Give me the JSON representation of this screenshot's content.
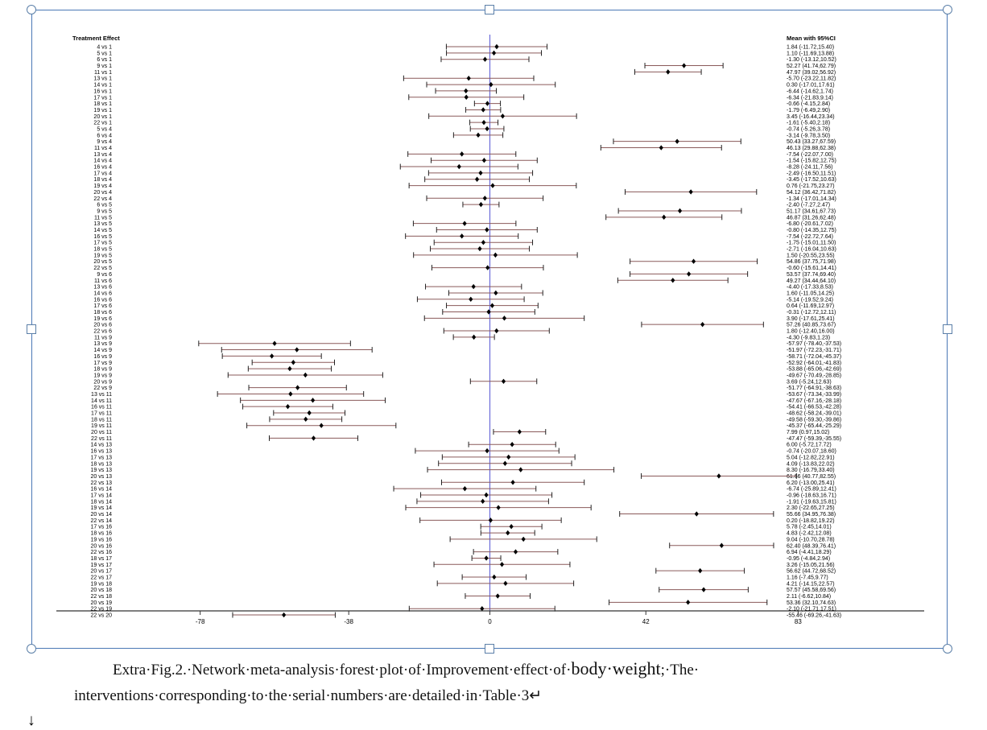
{
  "caption": {
    "line1_a": "Extra·Fig.2.·Network·meta-analysis·forest·plot·of·Improvement·effect·of·",
    "line1_b": "body·weight",
    "line1_c": ";·The·",
    "line2": "interventions·corresponding·to·the·serial·numbers·are·detailed·in·Table·3↵",
    "mark": "↓"
  },
  "colors": {
    "ci_line": "#8a5a5a",
    "zero_line": "#6b6bd9",
    "frame": "#4a78b5",
    "axis": "#333333"
  },
  "chart_data": {
    "type": "forest",
    "left_header": "Treatment Effect",
    "right_header": "Mean with 95%CI",
    "xticks": [
      -78,
      -38,
      0,
      42,
      83
    ],
    "xlim": [
      -97,
      115
    ],
    "reference_line": 0,
    "rows": [
      {
        "label": "4 vs 1",
        "mean": 1.84,
        "lo": -11.72,
        "hi": 15.4,
        "text": "1.84 (-11.72,15.40)"
      },
      {
        "label": "5 vs 1",
        "mean": 1.1,
        "lo": -11.69,
        "hi": 13.88,
        "text": "1.10 (-11.69,13.88)"
      },
      {
        "label": "6 vs 1",
        "mean": -1.3,
        "lo": -13.12,
        "hi": 10.52,
        "text": "-1.30 (-13.12,10.52)"
      },
      {
        "label": "9 vs 1",
        "mean": 52.27,
        "lo": 41.74,
        "hi": 62.79,
        "text": "52.27 (41.74,62.79)"
      },
      {
        "label": "11 vs 1",
        "mean": 47.97,
        "lo": 39.02,
        "hi": 56.92,
        "text": "47.97 (39.02,56.92)"
      },
      {
        "label": "13 vs 1",
        "mean": -5.7,
        "lo": -23.22,
        "hi": 11.82,
        "text": "-5.70 (-23.22,11.82)"
      },
      {
        "label": "14 vs 1",
        "mean": 0.3,
        "lo": -17.01,
        "hi": 17.61,
        "text": "0.30 (-17.01,17.61)"
      },
      {
        "label": "16 vs 1",
        "mean": -6.44,
        "lo": -14.62,
        "hi": 1.74,
        "text": "-6.44 (-14.62,1.74)"
      },
      {
        "label": "17 vs 1",
        "mean": -6.34,
        "lo": -21.83,
        "hi": 9.14,
        "text": "-6.34 (-21.83,9.14)"
      },
      {
        "label": "18 vs 1",
        "mean": -0.66,
        "lo": -4.15,
        "hi": 2.84,
        "text": "-0.66 (-4.15,2.84)"
      },
      {
        "label": "19 vs 1",
        "mean": -1.79,
        "lo": -6.49,
        "hi": 2.9,
        "text": "-1.79 (-6.49,2.90)"
      },
      {
        "label": "20 vs 1",
        "mean": 3.45,
        "lo": -16.44,
        "hi": 23.34,
        "text": "3.45 (-16.44,23.34)"
      },
      {
        "label": "22 vs 1",
        "mean": -1.61,
        "lo": -5.4,
        "hi": 2.18,
        "text": "-1.61 (-5.40,2.18)"
      },
      {
        "label": "5 vs 4",
        "mean": -0.74,
        "lo": -5.26,
        "hi": 3.78,
        "text": "-0.74 (-5.26,3.78)"
      },
      {
        "label": "6 vs 4",
        "mean": -3.14,
        "lo": -9.78,
        "hi": 3.5,
        "text": "-3.14 (-9.78,3.50)"
      },
      {
        "label": "9 vs 4",
        "mean": 50.43,
        "lo": 33.27,
        "hi": 67.59,
        "text": "50.43 (33.27,67.59)"
      },
      {
        "label": "11 vs 4",
        "mean": 46.13,
        "lo": 29.88,
        "hi": 62.38,
        "text": "46.13 (29.88,62.38)"
      },
      {
        "label": "13 vs 4",
        "mean": -7.54,
        "lo": -22.07,
        "hi": 7.0,
        "text": "-7.54 (-22.07,7.00)"
      },
      {
        "label": "14 vs 4",
        "mean": -1.54,
        "lo": -15.82,
        "hi": 12.75,
        "text": "-1.54 (-15.82,12.75)"
      },
      {
        "label": "16 vs 4",
        "mean": -8.28,
        "lo": -24.11,
        "hi": 7.56,
        "text": "-8.28 (-24.11,7.56)"
      },
      {
        "label": "17 vs 4",
        "mean": -2.49,
        "lo": -16.5,
        "hi": 11.51,
        "text": "-2.49 (-16.50,11.51)"
      },
      {
        "label": "18 vs 4",
        "mean": -3.45,
        "lo": -17.52,
        "hi": 10.63,
        "text": "-3.45 (-17.52,10.63)"
      },
      {
        "label": "19 vs 4",
        "mean": 0.76,
        "lo": -21.75,
        "hi": 23.27,
        "text": "0.76 (-21.75,23.27)"
      },
      {
        "label": "20 vs 4",
        "mean": 54.12,
        "lo": 36.42,
        "hi": 71.82,
        "text": "54.12 (36.42,71.82)"
      },
      {
        "label": "22 vs 4",
        "mean": -1.34,
        "lo": -17.01,
        "hi": 14.34,
        "text": "-1.34 (-17.01,14.34)"
      },
      {
        "label": "6 vs 5",
        "mean": -2.4,
        "lo": -7.27,
        "hi": 2.47,
        "text": "-2.40 (-7.27,2.47)"
      },
      {
        "label": "9 vs 5",
        "mean": 51.17,
        "lo": 34.61,
        "hi": 67.73,
        "text": "51.17 (34.61,67.73)"
      },
      {
        "label": "11 vs 5",
        "mean": 46.87,
        "lo": 31.26,
        "hi": 62.48,
        "text": "46.87 (31.26,62.48)"
      },
      {
        "label": "13 vs 5",
        "mean": -6.8,
        "lo": -20.61,
        "hi": 7.02,
        "text": "-6.80 (-20.61,7.02)"
      },
      {
        "label": "14 vs 5",
        "mean": -0.8,
        "lo": -14.35,
        "hi": 12.75,
        "text": "-0.80 (-14.35,12.75)"
      },
      {
        "label": "16 vs 5",
        "mean": -7.54,
        "lo": -22.72,
        "hi": 7.64,
        "text": "-7.54 (-22.72,7.64)"
      },
      {
        "label": "17 vs 5",
        "mean": -1.75,
        "lo": -15.01,
        "hi": 11.5,
        "text": "-1.75 (-15.01,11.50)"
      },
      {
        "label": "18 vs 5",
        "mean": -2.71,
        "lo": -16.04,
        "hi": 10.63,
        "text": "-2.71 (-16.04,10.63)"
      },
      {
        "label": "19 vs 5",
        "mean": 1.5,
        "lo": -20.55,
        "hi": 23.55,
        "text": "1.50 (-20.55,23.55)"
      },
      {
        "label": "20 vs 5",
        "mean": 54.86,
        "lo": 37.75,
        "hi": 71.98,
        "text": "54.86 (37.75,71.98)"
      },
      {
        "label": "22 vs 5",
        "mean": -0.6,
        "lo": -15.61,
        "hi": 14.41,
        "text": "-0.60 (-15.61,14.41)"
      },
      {
        "label": "9 vs 6",
        "mean": 53.57,
        "lo": 37.74,
        "hi": 69.4,
        "text": "53.57 (37.74,69.40)"
      },
      {
        "label": "11 vs 6",
        "mean": 49.27,
        "lo": 34.44,
        "hi": 64.1,
        "text": "49.27 (34.44,64.10)"
      },
      {
        "label": "13 vs 6",
        "mean": -4.4,
        "lo": -17.33,
        "hi": 8.53,
        "text": "-4.40 (-17.33,8.53)"
      },
      {
        "label": "14 vs 6",
        "mean": 1.6,
        "lo": -11.05,
        "hi": 14.25,
        "text": "1.60 (-11.05,14.25)"
      },
      {
        "label": "16 vs 6",
        "mean": -5.14,
        "lo": -19.52,
        "hi": 9.24,
        "text": "-5.14 (-19.52,9.24)"
      },
      {
        "label": "17 vs 6",
        "mean": 0.64,
        "lo": -11.69,
        "hi": 12.97,
        "text": "0.64 (-11.69,12.97)"
      },
      {
        "label": "18 vs 6",
        "mean": -0.31,
        "lo": -12.72,
        "hi": 12.11,
        "text": "-0.31 (-12.72,12.11)"
      },
      {
        "label": "19 vs 6",
        "mean": 3.9,
        "lo": -17.61,
        "hi": 25.41,
        "text": "3.90 (-17.61,25.41)"
      },
      {
        "label": "20 vs 6",
        "mean": 57.26,
        "lo": 40.85,
        "hi": 73.67,
        "text": "57.26 (40.85,73.67)"
      },
      {
        "label": "22 vs 6",
        "mean": 1.8,
        "lo": -12.4,
        "hi": 16.0,
        "text": "1.80 (-12.40,16.00)"
      },
      {
        "label": "11 vs 9",
        "mean": -4.3,
        "lo": -9.83,
        "hi": 1.23,
        "text": "-4.30 (-9.83,1.23)"
      },
      {
        "label": "13 vs 9",
        "mean": -57.97,
        "lo": -78.4,
        "hi": -37.53,
        "text": "-57.97 (-78.40,-37.53)"
      },
      {
        "label": "14 vs 9",
        "mean": -51.97,
        "lo": -72.23,
        "hi": -31.71,
        "text": "-51.97 (-72.23,-31.71)"
      },
      {
        "label": "16 vs 9",
        "mean": -58.71,
        "lo": -72.04,
        "hi": -45.37,
        "text": "-58.71 (-72.04,-45.37)"
      },
      {
        "label": "17 vs 9",
        "mean": -52.92,
        "lo": -64.01,
        "hi": -41.83,
        "text": "-52.92 (-64.01,-41.83)"
      },
      {
        "label": "18 vs 9",
        "mean": -53.88,
        "lo": -65.06,
        "hi": -42.69,
        "text": "-53.88 (-65.06,-42.69)"
      },
      {
        "label": "19 vs 9",
        "mean": -49.67,
        "lo": -70.49,
        "hi": -28.85,
        "text": "-49.67 (-70.49,-28.85)"
      },
      {
        "label": "20 vs 9",
        "mean": 3.69,
        "lo": -5.24,
        "hi": 12.63,
        "text": "3.69 (-5.24,12.63)"
      },
      {
        "label": "22 vs 9",
        "mean": -51.77,
        "lo": -64.91,
        "hi": -38.63,
        "text": "-51.77 (-64.91,-38.63)"
      },
      {
        "label": "13 vs 11",
        "mean": -53.67,
        "lo": -73.34,
        "hi": -33.99,
        "text": "-53.67 (-73.34,-33.99)"
      },
      {
        "label": "14 vs 11",
        "mean": -47.67,
        "lo": -67.16,
        "hi": -28.18,
        "text": "-47.67 (-67.16,-28.18)"
      },
      {
        "label": "16 vs 11",
        "mean": -54.41,
        "lo": -66.53,
        "hi": -42.28,
        "text": "-54.41 (-66.53,-42.28)"
      },
      {
        "label": "17 vs 11",
        "mean": -48.62,
        "lo": -58.24,
        "hi": -39.01,
        "text": "-48.62 (-58.24,-39.01)"
      },
      {
        "label": "18 vs 11",
        "mean": -49.58,
        "lo": -59.3,
        "hi": -39.86,
        "text": "-49.58 (-59.30,-39.86)"
      },
      {
        "label": "19 vs 11",
        "mean": -45.37,
        "lo": -65.44,
        "hi": -25.29,
        "text": "-45.37 (-65.44,-25.29)"
      },
      {
        "label": "20 vs 11",
        "mean": 7.99,
        "lo": 0.97,
        "hi": 15.02,
        "text": "7.99 (0.97,15.02)"
      },
      {
        "label": "22 vs 11",
        "mean": -47.47,
        "lo": -59.39,
        "hi": -35.55,
        "text": "-47.47 (-59.39,-35.55)"
      },
      {
        "label": "14 vs 13",
        "mean": 6.0,
        "lo": -5.72,
        "hi": 17.72,
        "text": "6.00 (-5.72,17.72)"
      },
      {
        "label": "16 vs 13",
        "mean": -0.74,
        "lo": -20.07,
        "hi": 18.6,
        "text": "-0.74 (-20.07,18.60)"
      },
      {
        "label": "17 vs 13",
        "mean": 5.04,
        "lo": -12.82,
        "hi": 22.91,
        "text": "5.04 (-12.82,22.91)"
      },
      {
        "label": "18 vs 13",
        "mean": 4.09,
        "lo": -13.83,
        "hi": 22.02,
        "text": "4.09 (-13.83,22.02)"
      },
      {
        "label": "19 vs 13",
        "mean": 8.3,
        "lo": -16.79,
        "hi": 33.4,
        "text": "8.30 (-16.79,33.40)"
      },
      {
        "label": "20 vs 13",
        "mean": 61.66,
        "lo": 40.77,
        "hi": 82.55,
        "text": "61.66 (40.77,82.55)"
      },
      {
        "label": "22 vs 13",
        "mean": 6.2,
        "lo": -13.0,
        "hi": 25.41,
        "text": "6.20 (-13.00,25.41)"
      },
      {
        "label": "16 vs 14",
        "mean": -6.74,
        "lo": -25.89,
        "hi": 12.41,
        "text": "-6.74 (-25.89,12.41)"
      },
      {
        "label": "17 vs 14",
        "mean": -0.96,
        "lo": -18.63,
        "hi": 16.71,
        "text": "-0.96 (-18.63,16.71)"
      },
      {
        "label": "18 vs 14",
        "mean": -1.91,
        "lo": -19.63,
        "hi": 15.81,
        "text": "-1.91 (-19.63,15.81)"
      },
      {
        "label": "19 vs 14",
        "mean": 2.3,
        "lo": -22.65,
        "hi": 27.25,
        "text": "2.30 (-22.65,27.25)"
      },
      {
        "label": "20 vs 14",
        "mean": 55.66,
        "lo": 34.95,
        "hi": 76.38,
        "text": "55.66 (34.95,76.38)"
      },
      {
        "label": "22 vs 14",
        "mean": 0.2,
        "lo": -18.82,
        "hi": 19.22,
        "text": "0.20 (-18.82,19.22)"
      },
      {
        "label": "17 vs 16",
        "mean": 5.78,
        "lo": -2.45,
        "hi": 14.01,
        "text": "5.78 (-2.45,14.01)"
      },
      {
        "label": "18 vs 16",
        "mean": 4.83,
        "lo": -2.42,
        "hi": 12.08,
        "text": "4.83 (-2.42,12.08)"
      },
      {
        "label": "19 vs 16",
        "mean": 9.04,
        "lo": -10.7,
        "hi": 28.78,
        "text": "9.04 (-10.70,28.78)"
      },
      {
        "label": "20 vs 16",
        "mean": 62.4,
        "lo": 48.39,
        "hi": 76.41,
        "text": "62.40 (48.39,76.41)"
      },
      {
        "label": "22 vs 16",
        "mean": 6.94,
        "lo": -4.41,
        "hi": 18.29,
        "text": "6.94 (-4.41,18.29)"
      },
      {
        "label": "18 vs 17",
        "mean": -0.95,
        "lo": -4.84,
        "hi": 2.94,
        "text": "-0.95 (-4.84,2.94)"
      },
      {
        "label": "19 vs 17",
        "mean": 3.26,
        "lo": -15.05,
        "hi": 21.56,
        "text": "3.26 (-15.05,21.56)"
      },
      {
        "label": "20 vs 17",
        "mean": 56.62,
        "lo": 44.72,
        "hi": 68.52,
        "text": "56.62 (44.72,68.52)"
      },
      {
        "label": "22 vs 17",
        "mean": 1.16,
        "lo": -7.45,
        "hi": 9.77,
        "text": "1.16 (-7.45,9.77)"
      },
      {
        "label": "19 vs 18",
        "mean": 4.21,
        "lo": -14.15,
        "hi": 22.57,
        "text": "4.21 (-14.15,22.57)"
      },
      {
        "label": "20 vs 18",
        "mean": 57.57,
        "lo": 45.58,
        "hi": 69.56,
        "text": "57.57 (45.58,69.56)"
      },
      {
        "label": "22 vs 18",
        "mean": 2.11,
        "lo": -6.62,
        "hi": 10.84,
        "text": "2.11 (-6.62,10.84)"
      },
      {
        "label": "20 vs 19",
        "mean": 53.36,
        "lo": 32.1,
        "hi": 74.63,
        "text": "53.36 (32.10,74.63)"
      },
      {
        "label": "22 vs 19",
        "mean": -2.1,
        "lo": -21.71,
        "hi": 17.51,
        "text": "-2.10 (-21.71,17.51)"
      },
      {
        "label": "22 vs 20",
        "mean": -55.46,
        "lo": -69.26,
        "hi": -41.63,
        "text": "-55.46 (-69.26,-41.63)"
      }
    ]
  }
}
